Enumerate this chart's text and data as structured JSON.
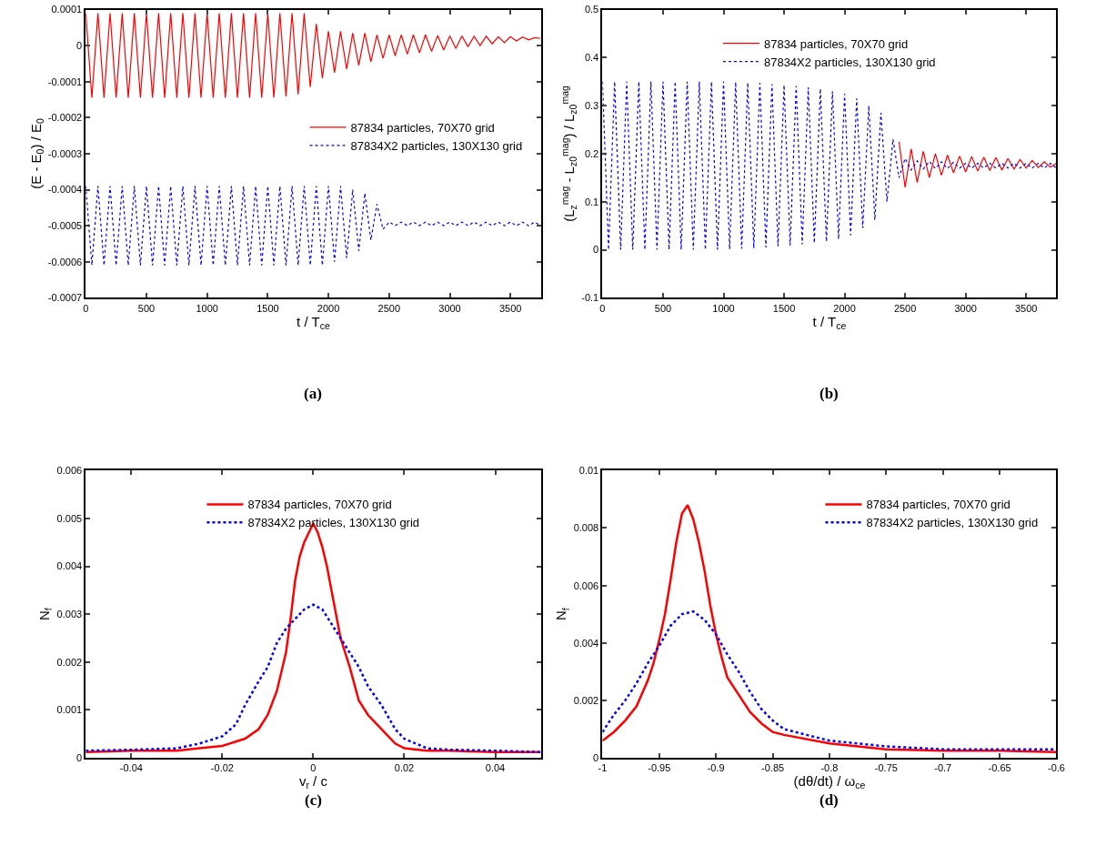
{
  "chart_data": [
    {
      "type": "line",
      "xlabel": "t / T$_{ce}$",
      "ylabel": "(E - E$_{0}$) / E$_{0}$",
      "xlim": [
        0,
        3750
      ],
      "xticks": [
        0,
        500,
        1000,
        1500,
        2000,
        2500,
        3000,
        3500
      ],
      "ylim": [
        -0.0007,
        0.0001
      ],
      "yticks": [
        -0.0007,
        -0.0006,
        -0.0005,
        -0.0004,
        -0.0003,
        -0.0002,
        -0.0001,
        0,
        0.0001
      ],
      "legend": "right",
      "annotations": [
        "(a)"
      ],
      "x": [
        0,
        50,
        100,
        150,
        200,
        250,
        300,
        350,
        400,
        450,
        500,
        550,
        600,
        650,
        700,
        750,
        800,
        850,
        900,
        950,
        1000,
        1050,
        1100,
        1150,
        1200,
        1250,
        1300,
        1350,
        1400,
        1450,
        1500,
        1550,
        1600,
        1650,
        1700,
        1750,
        1800,
        1850,
        1900,
        1950,
        2000,
        2050,
        2100,
        2150,
        2200,
        2250,
        2300,
        2350,
        2400,
        2450,
        2500,
        2550,
        2600,
        2650,
        2700,
        2750,
        2800,
        2850,
        2900,
        2950,
        3000,
        3050,
        3100,
        3150,
        3200,
        3250,
        3300,
        3350,
        3400,
        3450,
        3500,
        3550,
        3600,
        3650,
        3700,
        3750
      ],
      "series": [
        {
          "name": "87834 particles, 70X70 grid",
          "color": "#ff0000",
          "line_style": "solid",
          "values": [
            9e-05,
            -0.000145,
            9e-05,
            -0.000145,
            9e-05,
            -0.000145,
            9e-05,
            -0.000145,
            9e-05,
            -0.000145,
            9e-05,
            -0.000145,
            9e-05,
            -0.000145,
            9e-05,
            -0.000145,
            9e-05,
            -0.000145,
            9e-05,
            -0.000145,
            9e-05,
            -0.000145,
            9e-05,
            -0.000145,
            9e-05,
            -0.000145,
            9e-05,
            -0.000145,
            9e-05,
            -0.000145,
            9e-05,
            -0.000144,
            9e-05,
            -0.000141,
            9e-05,
            -0.000135,
            9e-05,
            -0.000115,
            6e-05,
            -9e-05,
            4e-05,
            -7.5e-05,
            4e-05,
            -6.5e-05,
            3.5e-05,
            -5.5e-05,
            3.5e-05,
            -4.5e-05,
            3e-05,
            -3.5e-05,
            3e-05,
            -2.8e-05,
            3e-05,
            -2.4e-05,
            3e-05,
            -2e-05,
            3e-05,
            -1.6e-05,
            2.8e-05,
            -1.2e-05,
            2.7e-05,
            -8e-06,
            2.7e-05,
            -3e-06,
            2.6e-05,
            0,
            2.6e-05,
            5e-06,
            2.5e-05,
            8e-06,
            2.5e-05,
            1.3e-05,
            2.4e-05,
            1.6e-05,
            2.2e-05,
            2e-05
          ]
        },
        {
          "name": "87834X2 particles, 130X130 grid",
          "color": "#0000ff",
          "line_style": "dotted",
          "values": [
            -0.00039,
            -0.00061,
            -0.00039,
            -0.00061,
            -0.00039,
            -0.00061,
            -0.00039,
            -0.00061,
            -0.00039,
            -0.00061,
            -0.00039,
            -0.00061,
            -0.00039,
            -0.00061,
            -0.00039,
            -0.00061,
            -0.00039,
            -0.00061,
            -0.00039,
            -0.00061,
            -0.00039,
            -0.00061,
            -0.00039,
            -0.00061,
            -0.00039,
            -0.00061,
            -0.00039,
            -0.00061,
            -0.00039,
            -0.00061,
            -0.00039,
            -0.00061,
            -0.00039,
            -0.00061,
            -0.00039,
            -0.00061,
            -0.00039,
            -0.00061,
            -0.00039,
            -0.00061,
            -0.00039,
            -0.0006,
            -0.00039,
            -0.00059,
            -0.0004,
            -0.00057,
            -0.00041,
            -0.00054,
            -0.00044,
            -0.00051,
            -0.00049,
            -0.0005,
            -0.00049,
            -0.0005,
            -0.00049,
            -0.0005,
            -0.00049,
            -0.0005,
            -0.00049,
            -0.0005,
            -0.00049,
            -0.0005,
            -0.00049,
            -0.0005,
            -0.00049,
            -0.0005,
            -0.00049,
            -0.0005,
            -0.00049,
            -0.0005,
            -0.00049,
            -0.0005,
            -0.00049,
            -0.0005,
            -0.00049,
            -0.0005
          ]
        }
      ]
    },
    {
      "type": "line",
      "xlabel": "t / T$_{ce}$",
      "ylabel": "(L$_{z}$$^{mag}$ - L$_{z0}$$^{mag}$) / L$_{z0}$$^{mag}$",
      "xlim": [
        0,
        3750
      ],
      "xticks": [
        0,
        500,
        1000,
        1500,
        2000,
        2500,
        3000,
        3500
      ],
      "ylim": [
        -0.1,
        0.5
      ],
      "yticks": [
        -0.1,
        0,
        0.1,
        0.2,
        0.3,
        0.4,
        0.5
      ],
      "legend": "top",
      "annotations": [
        "(b)"
      ],
      "series": [
        {
          "name": "87834 particles, 70X70 grid",
          "color": "#ff0000",
          "line_style": "solid",
          "x": [
            2450,
            2500,
            2550,
            2600,
            2650,
            2700,
            2750,
            2800,
            2850,
            2900,
            2950,
            3000,
            3050,
            3100,
            3150,
            3200,
            3250,
            3300,
            3350,
            3400,
            3450,
            3500,
            3550,
            3600,
            3650,
            3700,
            3750
          ],
          "values": [
            0.225,
            0.13,
            0.21,
            0.14,
            0.205,
            0.15,
            0.2,
            0.155,
            0.197,
            0.16,
            0.195,
            0.162,
            0.194,
            0.164,
            0.193,
            0.165,
            0.192,
            0.166,
            0.19,
            0.168,
            0.188,
            0.17,
            0.186,
            0.171,
            0.183,
            0.172,
            0.18
          ]
        },
        {
          "name": "87834X2 particles, 130X130 grid",
          "color": "#0000ff",
          "line_style": "dotted",
          "x": [
            0,
            50,
            100,
            150,
            200,
            250,
            300,
            350,
            400,
            450,
            500,
            550,
            600,
            650,
            700,
            750,
            800,
            850,
            900,
            950,
            1000,
            1050,
            1100,
            1150,
            1200,
            1250,
            1300,
            1350,
            1400,
            1450,
            1500,
            1550,
            1600,
            1650,
            1700,
            1750,
            1800,
            1850,
            1900,
            1950,
            2000,
            2050,
            2100,
            2150,
            2200,
            2250,
            2300,
            2350,
            2400,
            2450,
            2500,
            2550,
            2600,
            2650,
            2700,
            2750,
            2800,
            2850,
            2900,
            2950,
            3000,
            3050,
            3100,
            3150,
            3200,
            3250,
            3300,
            3350,
            3400,
            3450,
            3500,
            3550,
            3600,
            3650,
            3700,
            3750
          ],
          "values": [
            0.35,
            0,
            0.35,
            0,
            0.35,
            0,
            0.35,
            0,
            0.35,
            0,
            0.35,
            0,
            0.35,
            0,
            0.35,
            0,
            0.35,
            0,
            0.35,
            0,
            0.35,
            0.001,
            0.349,
            0.002,
            0.348,
            0.003,
            0.347,
            0.005,
            0.345,
            0.007,
            0.343,
            0.009,
            0.341,
            0.011,
            0.338,
            0.014,
            0.335,
            0.017,
            0.33,
            0.022,
            0.325,
            0.03,
            0.315,
            0.045,
            0.3,
            0.062,
            0.285,
            0.1,
            0.23,
            0.15,
            0.19,
            0.166,
            0.185,
            0.168,
            0.184,
            0.169,
            0.183,
            0.169,
            0.182,
            0.17,
            0.18,
            0.17,
            0.18,
            0.17,
            0.18,
            0.17,
            0.18,
            0.17,
            0.18,
            0.17,
            0.18,
            0.17,
            0.18,
            0.17,
            0.18,
            0.17
          ]
        }
      ]
    },
    {
      "type": "line",
      "xlabel": "v$_{r}$ / c",
      "ylabel": "N$_{f}$",
      "xlim": [
        -0.05,
        0.05
      ],
      "xticks": [
        -0.04,
        -0.02,
        0,
        0.02,
        0.04
      ],
      "ylim": [
        0,
        0.006
      ],
      "yticks": [
        0,
        0.001,
        0.002,
        0.003,
        0.004,
        0.005,
        0.006
      ],
      "legend": "top",
      "annotations": [
        "(c)"
      ],
      "series": [
        {
          "name": "87834 particles, 70X70 grid",
          "color": "#ff0000",
          "line_style": "solid",
          "x": [
            -0.05,
            -0.04,
            -0.03,
            -0.025,
            -0.02,
            -0.015,
            -0.012,
            -0.01,
            -0.008,
            -0.006,
            -0.005,
            -0.004,
            -0.003,
            -0.002,
            -0.001,
            0,
            0.001,
            0.002,
            0.003,
            0.004,
            0.005,
            0.006,
            0.008,
            0.01,
            0.012,
            0.015,
            0.018,
            0.02,
            0.025,
            0.03,
            0.04,
            0.05
          ],
          "values": [
            0.00012,
            0.00015,
            0.00015,
            0.0002,
            0.00025,
            0.0004,
            0.0006,
            0.0009,
            0.0014,
            0.0022,
            0.0029,
            0.0037,
            0.0042,
            0.0045,
            0.0047,
            0.0049,
            0.0047,
            0.0044,
            0.004,
            0.0035,
            0.003,
            0.0025,
            0.0019,
            0.0012,
            0.0009,
            0.0006,
            0.0003,
            0.0002,
            0.00015,
            0.00015,
            0.00012,
            0.00012
          ]
        },
        {
          "name": "87834X2 particles, 130X130 grid",
          "color": "#0000ff",
          "line_style": "dotted",
          "x": [
            -0.05,
            -0.04,
            -0.03,
            -0.025,
            -0.02,
            -0.017,
            -0.015,
            -0.012,
            -0.01,
            -0.008,
            -0.006,
            -0.004,
            -0.002,
            0,
            0.002,
            0.004,
            0.006,
            0.008,
            0.01,
            0.012,
            0.015,
            0.018,
            0.02,
            0.025,
            0.03,
            0.04,
            0.05
          ],
          "values": [
            0.00015,
            0.00017,
            0.0002,
            0.0003,
            0.00045,
            0.0007,
            0.0011,
            0.0016,
            0.0019,
            0.0024,
            0.0027,
            0.0029,
            0.0031,
            0.0032,
            0.0031,
            0.0028,
            0.0025,
            0.0022,
            0.0019,
            0.0015,
            0.0011,
            0.0006,
            0.0004,
            0.0002,
            0.00017,
            0.00015,
            0.00012
          ]
        }
      ]
    },
    {
      "type": "line",
      "xlabel": "(dθ/dt) / ω$_{ce}$",
      "ylabel": "N$_{f}$",
      "xlim": [
        -1,
        -0.6
      ],
      "xticks": [
        -1,
        -0.95,
        -0.9,
        -0.85,
        -0.8,
        -0.75,
        -0.7,
        -0.65,
        -0.6
      ],
      "ylim": [
        0,
        0.01
      ],
      "yticks": [
        0,
        0.002,
        0.004,
        0.006,
        0.008,
        0.01
      ],
      "legend": "top right",
      "annotations": [
        "(d)"
      ],
      "series": [
        {
          "name": "87834 particles, 70X70 grid",
          "color": "#ff0000",
          "line_style": "solid",
          "x": [
            -1,
            -0.99,
            -0.98,
            -0.97,
            -0.96,
            -0.955,
            -0.95,
            -0.945,
            -0.94,
            -0.935,
            -0.93,
            -0.925,
            -0.92,
            -0.915,
            -0.91,
            -0.905,
            -0.9,
            -0.895,
            -0.89,
            -0.88,
            -0.87,
            -0.86,
            -0.85,
            -0.84,
            -0.8,
            -0.75,
            -0.7,
            -0.65,
            -0.6
          ],
          "values": [
            0.0006,
            0.0009,
            0.0013,
            0.0018,
            0.0027,
            0.0033,
            0.0041,
            0.005,
            0.0062,
            0.0075,
            0.0085,
            0.0088,
            0.0083,
            0.0075,
            0.0065,
            0.0053,
            0.0043,
            0.0035,
            0.0028,
            0.0022,
            0.0016,
            0.0012,
            0.0009,
            0.0008,
            0.0005,
            0.0003,
            0.00025,
            0.00025,
            0.0002
          ]
        },
        {
          "name": "87834X2 particles, 130X130 grid",
          "color": "#0000ff",
          "line_style": "dotted",
          "x": [
            -1,
            -0.99,
            -0.98,
            -0.97,
            -0.96,
            -0.95,
            -0.94,
            -0.93,
            -0.92,
            -0.91,
            -0.9,
            -0.89,
            -0.88,
            -0.87,
            -0.86,
            -0.85,
            -0.84,
            -0.82,
            -0.8,
            -0.75,
            -0.7,
            -0.65,
            -0.6
          ],
          "values": [
            0.0009,
            0.0015,
            0.002,
            0.0026,
            0.0033,
            0.0039,
            0.0046,
            0.005,
            0.0051,
            0.0048,
            0.0043,
            0.0036,
            0.003,
            0.0023,
            0.0017,
            0.0013,
            0.001,
            0.0008,
            0.0006,
            0.0004,
            0.0003,
            0.0003,
            0.0003
          ]
        }
      ]
    }
  ]
}
